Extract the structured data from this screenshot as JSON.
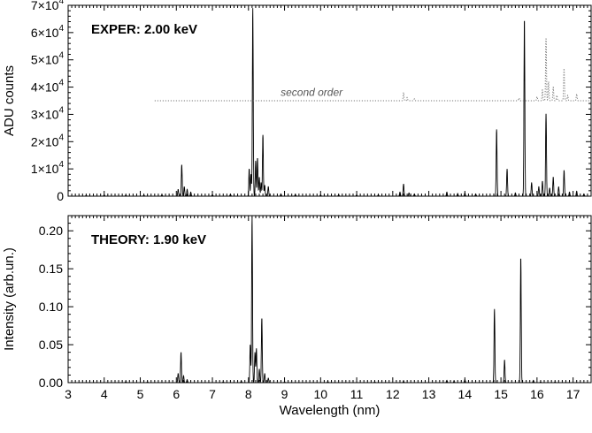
{
  "chart_data": [
    {
      "type": "line",
      "panel": "top",
      "title": "EXPER: 2.00 keV",
      "ylabel": "ADU counts",
      "xlabel": "",
      "xlim": [
        3,
        17.5
      ],
      "ylim": [
        0,
        70000
      ],
      "y_ticks": [
        {
          "value": 0,
          "mantissa": "0",
          "exp": ""
        },
        {
          "value": 10000,
          "mantissa": "1×10",
          "exp": "4"
        },
        {
          "value": 20000,
          "mantissa": "2×10",
          "exp": "4"
        },
        {
          "value": 30000,
          "mantissa": "3×10",
          "exp": "4"
        },
        {
          "value": 40000,
          "mantissa": "4×10",
          "exp": "4"
        },
        {
          "value": 50000,
          "mantissa": "5×10",
          "exp": "4"
        },
        {
          "value": 60000,
          "mantissa": "6×10",
          "exp": "4"
        },
        {
          "value": 70000,
          "mantissa": "7×10",
          "exp": "4"
        }
      ],
      "annotation": "second order",
      "series": [
        {
          "style": "solid",
          "peaks": [
            [
              3.5,
              300
            ],
            [
              4.0,
              500
            ],
            [
              4.6,
              400
            ],
            [
              5.1,
              400
            ],
            [
              5.6,
              500
            ],
            [
              6.05,
              2500
            ],
            [
              6.15,
              11500
            ],
            [
              6.22,
              3500
            ],
            [
              6.3,
              2500
            ],
            [
              6.4,
              1500
            ],
            [
              7.0,
              600
            ],
            [
              7.5,
              700
            ],
            [
              8.02,
              10000
            ],
            [
              8.07,
              8000
            ],
            [
              8.12,
              69000
            ],
            [
              8.2,
              13000
            ],
            [
              8.25,
              14000
            ],
            [
              8.3,
              7000
            ],
            [
              8.35,
              5000
            ],
            [
              8.4,
              22500
            ],
            [
              8.45,
              4000
            ],
            [
              8.55,
              3500
            ],
            [
              8.9,
              800
            ],
            [
              9.3,
              600
            ],
            [
              10.0,
              500
            ],
            [
              10.5,
              500
            ],
            [
              11.0,
              500
            ],
            [
              11.6,
              500
            ],
            [
              12.2,
              1500
            ],
            [
              12.3,
              4500
            ],
            [
              12.45,
              1200
            ],
            [
              12.6,
              800
            ],
            [
              13.5,
              1500
            ],
            [
              13.8,
              1000
            ],
            [
              14.0,
              1200
            ],
            [
              14.3,
              800
            ],
            [
              14.88,
              24500
            ],
            [
              15.17,
              10000
            ],
            [
              15.4,
              1200
            ],
            [
              15.65,
              65000
            ],
            [
              15.85,
              5000
            ],
            [
              16.05,
              3500
            ],
            [
              16.15,
              5500
            ],
            [
              16.25,
              30500
            ],
            [
              16.35,
              3000
            ],
            [
              16.45,
              7000
            ],
            [
              16.6,
              3500
            ],
            [
              16.75,
              9500
            ],
            [
              16.9,
              1500
            ],
            [
              17.1,
              1800
            ],
            [
              17.3,
              800
            ]
          ]
        },
        {
          "style": "dotted",
          "baseline": 35000,
          "x_start": 5.4,
          "peaks": [
            [
              12.3,
              3000
            ],
            [
              12.4,
              1200
            ],
            [
              12.6,
              700
            ],
            [
              15.5,
              1000
            ],
            [
              16.0,
              1500
            ],
            [
              16.15,
              4000
            ],
            [
              16.25,
              23000
            ],
            [
              16.32,
              7000
            ],
            [
              16.45,
              5000
            ],
            [
              16.55,
              2000
            ],
            [
              16.75,
              12000
            ],
            [
              16.85,
              2000
            ],
            [
              17.1,
              2500
            ]
          ]
        }
      ]
    },
    {
      "type": "line",
      "panel": "bottom",
      "title": "THEORY: 1.90 keV",
      "ylabel": "Intensity (arb.un.)",
      "xlabel": "Wavelength (nm)",
      "xlim": [
        3,
        17.5
      ],
      "ylim": [
        0,
        0.22
      ],
      "y_ticks": [
        "0.00",
        "0.05",
        "0.10",
        "0.15",
        "0.20"
      ],
      "x_ticks": [
        "3",
        "4",
        "5",
        "6",
        "7",
        "8",
        "9",
        "10",
        "11",
        "12",
        "13",
        "14",
        "15",
        "16",
        "17"
      ],
      "series": [
        {
          "style": "solid",
          "peaks": [
            [
              4.6,
              0.0015
            ],
            [
              5.2,
              0.001
            ],
            [
              6.05,
              0.012
            ],
            [
              6.13,
              0.04
            ],
            [
              6.2,
              0.009
            ],
            [
              6.3,
              0.004
            ],
            [
              7.3,
              0.001
            ],
            [
              7.8,
              0.002
            ],
            [
              8.05,
              0.05
            ],
            [
              8.1,
              0.218
            ],
            [
              8.18,
              0.04
            ],
            [
              8.22,
              0.045
            ],
            [
              8.3,
              0.018
            ],
            [
              8.37,
              0.085
            ],
            [
              8.45,
              0.012
            ],
            [
              8.55,
              0.006
            ],
            [
              9.0,
              0.001
            ],
            [
              10.2,
              0.0015
            ],
            [
              11.5,
              0.001
            ],
            [
              12.3,
              0.002
            ],
            [
              13.5,
              0.003
            ],
            [
              13.7,
              0.002
            ],
            [
              14.0,
              0.004
            ],
            [
              14.82,
              0.097
            ],
            [
              15.1,
              0.03
            ],
            [
              15.55,
              0.165
            ],
            [
              15.9,
              0.003
            ],
            [
              16.1,
              0.001
            ],
            [
              16.5,
              0.001
            ]
          ]
        }
      ]
    }
  ]
}
